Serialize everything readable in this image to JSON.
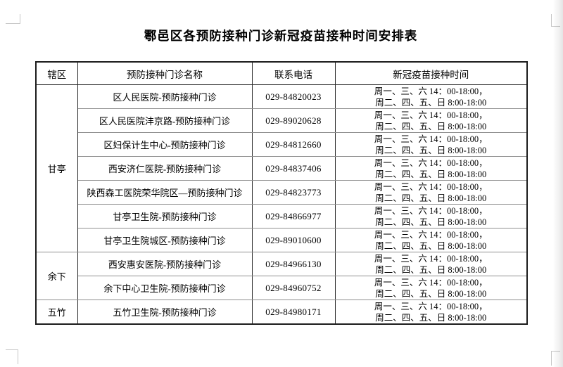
{
  "page": {
    "title": "鄠邑区各预防接种门诊新冠疫苗接种时间安排表"
  },
  "table": {
    "headers": [
      "辖区",
      "预防接种门诊名称",
      "联系电话",
      "新冠疫苗接种时间"
    ],
    "schedule": {
      "line1": "周一、三、六 14：00-18:00，",
      "line2": "周二、四、五、日 8:00-18:00"
    },
    "groups": [
      {
        "district": "甘亭",
        "rows": [
          {
            "clinic": "区人民医院-预防接种门诊",
            "phone": "029-84820023"
          },
          {
            "clinic": "区人民医院沣京路-预防接种门诊",
            "phone": "029-89020628"
          },
          {
            "clinic": "区妇保计生中心-预防接种门诊",
            "phone": "029-84812660"
          },
          {
            "clinic": "西安济仁医院-预防接种门诊",
            "phone": "029-84837406"
          },
          {
            "clinic": "陕西森工医院荣华院区—预防接种门诊",
            "phone": "029-84823773"
          },
          {
            "clinic": "甘亭卫生院-预防接种门诊",
            "phone": "029-84866977"
          },
          {
            "clinic": "甘亭卫生院城区-预防接种门诊",
            "phone": "029-89010600"
          }
        ]
      },
      {
        "district": "余下",
        "rows": [
          {
            "clinic": "西安惠安医院-预防接种门诊",
            "phone": "029-84966130"
          },
          {
            "clinic": "余下中心卫生院-预防接种门诊",
            "phone": "029-84960752"
          }
        ]
      },
      {
        "district": "五竹",
        "rows": [
          {
            "clinic": "五竹卫生院-预防接种门诊",
            "phone": "029-84980171"
          }
        ]
      }
    ]
  }
}
